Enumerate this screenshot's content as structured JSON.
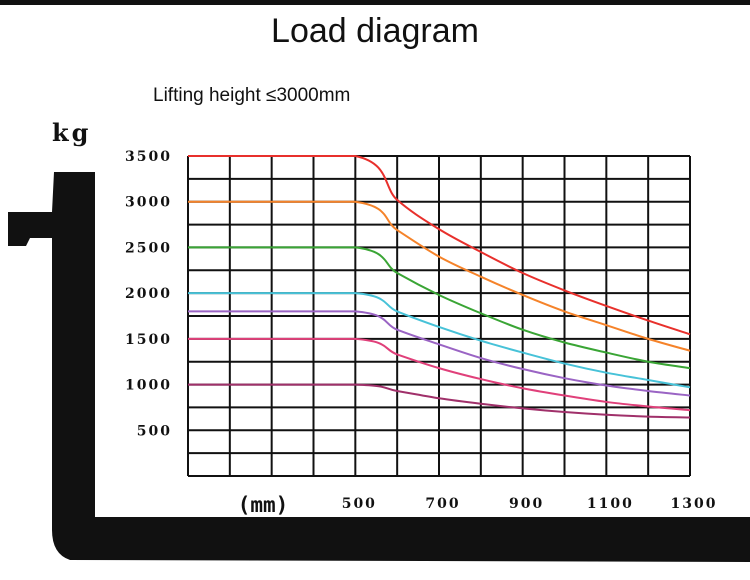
{
  "title": "Load diagram",
  "subtitle": "Lifting height ≤3000mm",
  "chart_data": {
    "type": "line",
    "title": "Load diagram",
    "subtitle": "Lifting height ≤3000mm",
    "ylabel": "kg",
    "xlabel": "(mm)",
    "xlim": [
      100,
      1300
    ],
    "ylim": [
      0,
      3500
    ],
    "x_ticks": [
      500,
      700,
      900,
      1100,
      1300
    ],
    "y_ticks": [
      500,
      1000,
      1500,
      2000,
      2500,
      3000,
      3500
    ],
    "grid": true,
    "series": [
      {
        "color": "#e8302c",
        "points": [
          [
            100,
            3500
          ],
          [
            500,
            3500
          ],
          [
            600,
            3020
          ],
          [
            700,
            2700
          ],
          [
            800,
            2450
          ],
          [
            900,
            2220
          ],
          [
            1000,
            2030
          ],
          [
            1100,
            1860
          ],
          [
            1200,
            1700
          ],
          [
            1300,
            1550
          ]
        ]
      },
      {
        "color": "#f5832a",
        "points": [
          [
            100,
            3000
          ],
          [
            500,
            3000
          ],
          [
            600,
            2690
          ],
          [
            700,
            2400
          ],
          [
            800,
            2180
          ],
          [
            900,
            1980
          ],
          [
            1000,
            1800
          ],
          [
            1100,
            1650
          ],
          [
            1200,
            1500
          ],
          [
            1300,
            1370
          ]
        ]
      },
      {
        "color": "#3aa535",
        "points": [
          [
            100,
            2500
          ],
          [
            500,
            2500
          ],
          [
            600,
            2220
          ],
          [
            700,
            1980
          ],
          [
            800,
            1780
          ],
          [
            900,
            1600
          ],
          [
            1000,
            1460
          ],
          [
            1100,
            1350
          ],
          [
            1200,
            1250
          ],
          [
            1300,
            1180
          ]
        ]
      },
      {
        "color": "#47c2d8",
        "points": [
          [
            100,
            2000
          ],
          [
            500,
            2000
          ],
          [
            600,
            1800
          ],
          [
            700,
            1630
          ],
          [
            800,
            1480
          ],
          [
            900,
            1350
          ],
          [
            1000,
            1230
          ],
          [
            1100,
            1130
          ],
          [
            1200,
            1050
          ],
          [
            1300,
            970
          ]
        ]
      },
      {
        "color": "#9a64c4",
        "points": [
          [
            100,
            1800
          ],
          [
            500,
            1800
          ],
          [
            600,
            1600
          ],
          [
            700,
            1440
          ],
          [
            800,
            1290
          ],
          [
            900,
            1170
          ],
          [
            1000,
            1070
          ],
          [
            1100,
            990
          ],
          [
            1200,
            930
          ],
          [
            1300,
            880
          ]
        ]
      },
      {
        "color": "#e0407a",
        "points": [
          [
            100,
            1500
          ],
          [
            500,
            1500
          ],
          [
            600,
            1330
          ],
          [
            700,
            1180
          ],
          [
            800,
            1060
          ],
          [
            900,
            960
          ],
          [
            1000,
            880
          ],
          [
            1100,
            810
          ],
          [
            1200,
            760
          ],
          [
            1300,
            720
          ]
        ]
      },
      {
        "color": "#a0306a",
        "points": [
          [
            100,
            1000
          ],
          [
            500,
            1000
          ],
          [
            600,
            930
          ],
          [
            700,
            850
          ],
          [
            800,
            790
          ],
          [
            900,
            740
          ],
          [
            1000,
            700
          ],
          [
            1100,
            670
          ],
          [
            1200,
            650
          ],
          [
            1300,
            640
          ]
        ]
      }
    ]
  },
  "icons": {
    "fork": "forklift-fork-silhouette"
  }
}
